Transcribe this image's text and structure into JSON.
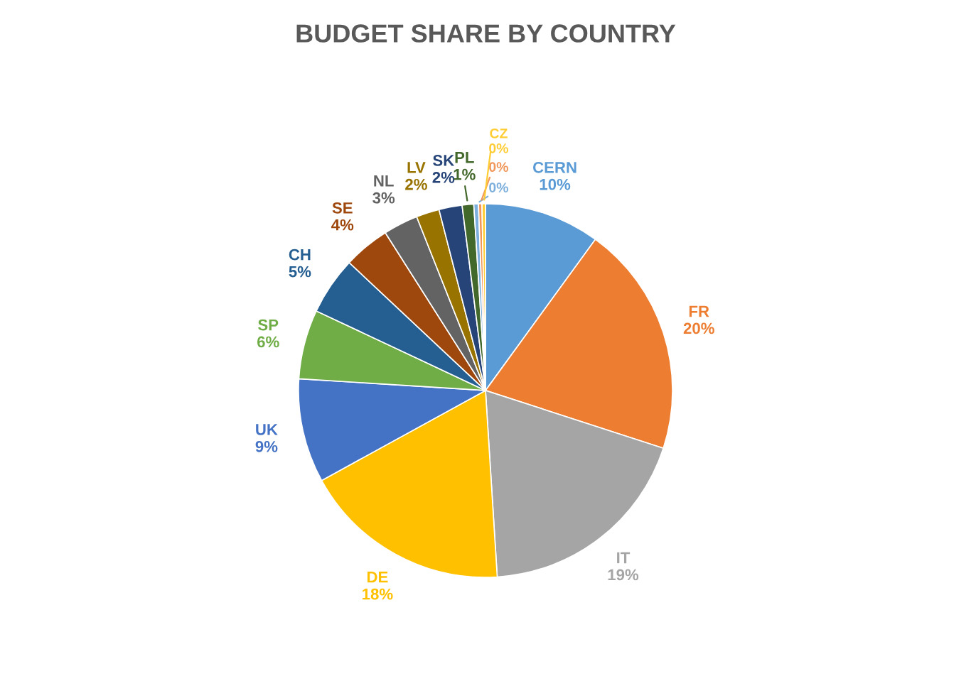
{
  "chart_data": {
    "type": "pie",
    "title": "BUDGET SHARE BY COUNTRY",
    "categories": [
      "CERN",
      "FR",
      "IT",
      "DE",
      "UK",
      "SP",
      "CH",
      "SE",
      "NL",
      "LV",
      "SK",
      "PL",
      null,
      null,
      "CZ"
    ],
    "values": [
      10,
      20,
      19,
      18,
      9,
      6,
      5,
      4,
      3,
      2,
      2,
      1,
      0.4,
      0.3,
      0.3
    ],
    "value_labels": [
      "10%",
      "20%",
      "19%",
      "18%",
      "9%",
      "6%",
      "5%",
      "4%",
      "3%",
      "2%",
      "2%",
      "1%",
      "0%",
      "0%",
      "0%"
    ],
    "colors": [
      "#5b9bd5",
      "#ed7d31",
      "#a5a5a5",
      "#ffc000",
      "#4472c4",
      "#70ad47",
      "#255e91",
      "#9e480e",
      "#636363",
      "#997300",
      "#264478",
      "#43682b",
      "#7cafdd",
      "#f1975a",
      "#ffcd33"
    ]
  }
}
